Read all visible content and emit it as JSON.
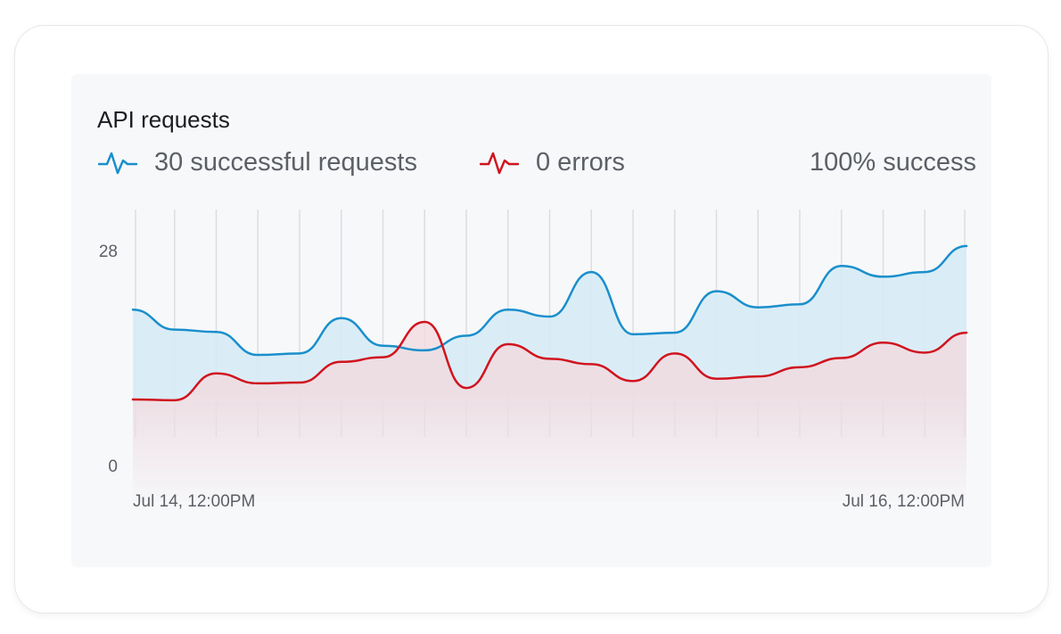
{
  "card": {
    "title": "API requests",
    "success_label": "30 successful requests",
    "errors_label": "0 errors",
    "success_rate": "100% success"
  },
  "icons": {
    "success": "activity-pulse-icon",
    "errors": "activity-pulse-icon"
  },
  "colors": {
    "success": "#1a8fcb",
    "errors": "#d0141f",
    "success_fill": "#d6ebf6",
    "errors_fill": "#f3d9de"
  },
  "chart_data": {
    "type": "area",
    "title": "API requests",
    "xlabel": "",
    "ylabel": "",
    "ylim": [
      0,
      28
    ],
    "yticks": [
      0,
      28
    ],
    "grid": true,
    "xlim": [
      "Jul 14, 12:00PM",
      "Jul 16, 12:00PM"
    ],
    "x_tick_labels": [
      "Jul 14, 12:00PM",
      "Jul 16, 12:00PM"
    ],
    "x": [
      "Jul 14, 12:00PM",
      "Jul 14, 2:24PM",
      "Jul 14, 4:48PM",
      "Jul 14, 7:12PM",
      "Jul 14, 9:36PM",
      "Jul 15, 12:00AM",
      "Jul 15, 2:24AM",
      "Jul 15, 4:48AM",
      "Jul 15, 7:12AM",
      "Jul 15, 9:36AM",
      "Jul 15, 12:00PM",
      "Jul 15, 2:24PM",
      "Jul 15, 4:48PM",
      "Jul 15, 7:12PM",
      "Jul 15, 9:36PM",
      "Jul 16, 12:00AM",
      "Jul 16, 2:24AM",
      "Jul 16, 4:48AM",
      "Jul 16, 7:12AM",
      "Jul 16, 9:36AM",
      "Jul 16, 12:00PM"
    ],
    "series": [
      {
        "values": [
          20.3,
          17.7,
          17.4,
          14.4,
          14.6,
          19.2,
          15.6,
          15.0,
          16.9,
          20.3,
          19.4,
          25.2,
          17.1,
          17.3,
          22.7,
          20.6,
          21.0,
          26.0,
          24.6,
          25.2,
          28.6
        ]
      },
      {
        "values": [
          8.6,
          8.5,
          12.0,
          10.7,
          10.8,
          13.5,
          14.1,
          18.7,
          10.1,
          15.8,
          13.9,
          13.2,
          11.0,
          14.6,
          11.3,
          11.6,
          12.8,
          14.0,
          16.0,
          14.7,
          17.3
        ]
      }
    ]
  }
}
